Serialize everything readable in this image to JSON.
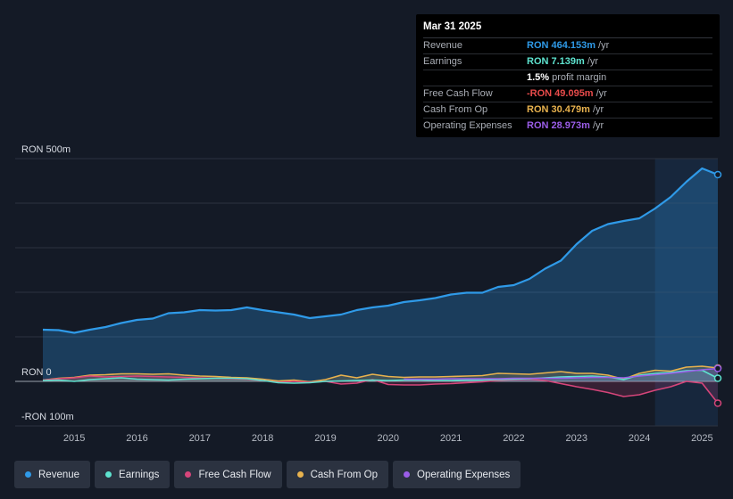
{
  "tooltip": {
    "date": "Mar 31 2025",
    "rows": [
      {
        "label": "Revenue",
        "value": "RON 464.153m",
        "unit": "/yr",
        "color": "#2f9ae8"
      },
      {
        "label": "Earnings",
        "value": "RON 7.139m",
        "unit": "/yr",
        "color": "#5ee3cf"
      },
      {
        "label": "",
        "value": "1.5%",
        "unit": "profit margin",
        "color": "#ffffff"
      },
      {
        "label": "Free Cash Flow",
        "value": "-RON 49.095m",
        "unit": "/yr",
        "color": "#e84b4b"
      },
      {
        "label": "Cash From Op",
        "value": "RON 30.479m",
        "unit": "/yr",
        "color": "#e8b24e"
      },
      {
        "label": "Operating Expenses",
        "value": "RON 28.973m",
        "unit": "/yr",
        "color": "#9b5de8"
      }
    ]
  },
  "legend": [
    {
      "key": "revenue",
      "label": "Revenue",
      "color": "#2f9ae8"
    },
    {
      "key": "earnings",
      "label": "Earnings",
      "color": "#5ee3cf"
    },
    {
      "key": "fcf",
      "label": "Free Cash Flow",
      "color": "#d6457a"
    },
    {
      "key": "cfo",
      "label": "Cash From Op",
      "color": "#e8b24e"
    },
    {
      "key": "opex",
      "label": "Operating Expenses",
      "color": "#9b5de8"
    }
  ],
  "chart_data": {
    "type": "area",
    "title": "",
    "xlabel": "",
    "ylabel": "",
    "y_tick_labels": [
      {
        "value": 500,
        "label": "RON 500m"
      },
      {
        "value": 0,
        "label": "RON 0"
      },
      {
        "value": -100,
        "label": "-RON 100m"
      }
    ],
    "ylim": [
      -100,
      500
    ],
    "xlim": [
      2014.5,
      2025.25
    ],
    "x_ticks": [
      2015,
      2016,
      2017,
      2018,
      2019,
      2020,
      2021,
      2022,
      2023,
      2024,
      2025
    ],
    "x_tick_labels": [
      "2015",
      "2016",
      "2017",
      "2018",
      "2019",
      "2020",
      "2021",
      "2022",
      "2023",
      "2024",
      "2025"
    ],
    "highlight_from": 2024.25,
    "series": [
      {
        "name": "Revenue",
        "color": "#2f9ae8",
        "x": [
          2014.5,
          2014.75,
          2015.0,
          2015.25,
          2015.5,
          2015.75,
          2016.0,
          2016.25,
          2016.5,
          2016.75,
          2017.0,
          2017.25,
          2017.5,
          2017.75,
          2018.0,
          2018.25,
          2018.5,
          2018.75,
          2019.0,
          2019.25,
          2019.5,
          2019.75,
          2020.0,
          2020.25,
          2020.5,
          2020.75,
          2021.0,
          2021.25,
          2021.5,
          2021.75,
          2022.0,
          2022.25,
          2022.5,
          2022.75,
          2023.0,
          2023.25,
          2023.5,
          2023.75,
          2024.0,
          2024.25,
          2024.5,
          2024.75,
          2025.0,
          2025.25
        ],
        "y": [
          116,
          115,
          109,
          116,
          122,
          131,
          138,
          141,
          153,
          155,
          160,
          159,
          160,
          166,
          160,
          155,
          150,
          142,
          146,
          150,
          160,
          166,
          170,
          178,
          182,
          187,
          195,
          199,
          199,
          212,
          216,
          230,
          253,
          271,
          308,
          338,
          353,
          360,
          366,
          388,
          414,
          448,
          478,
          464
        ]
      },
      {
        "name": "Earnings",
        "color": "#5ee3cf",
        "x": [
          2014.5,
          2014.75,
          2015.0,
          2015.25,
          2015.5,
          2015.75,
          2016.0,
          2016.25,
          2016.5,
          2016.75,
          2017.0,
          2017.25,
          2017.5,
          2017.75,
          2018.0,
          2018.25,
          2018.5,
          2018.75,
          2019.0,
          2019.25,
          2019.5,
          2019.75,
          2020.0,
          2020.25,
          2020.5,
          2020.75,
          2021.0,
          2021.25,
          2021.5,
          2021.75,
          2022.0,
          2022.25,
          2022.5,
          2022.75,
          2023.0,
          2023.25,
          2023.5,
          2023.75,
          2024.0,
          2024.25,
          2024.5,
          2024.75,
          2025.0,
          2025.25
        ],
        "y": [
          2,
          3,
          0,
          4,
          6,
          8,
          5,
          4,
          3,
          5,
          6,
          7,
          7,
          6,
          2,
          -3,
          -4,
          -3,
          0,
          1,
          2,
          3,
          2,
          3,
          3,
          2,
          2,
          3,
          3,
          4,
          5,
          6,
          8,
          10,
          11,
          12,
          10,
          4,
          14,
          18,
          20,
          24,
          25,
          7
        ]
      },
      {
        "name": "Free Cash Flow",
        "color": "#d6457a",
        "x": [
          2014.5,
          2014.75,
          2015.0,
          2015.25,
          2015.5,
          2015.75,
          2016.0,
          2016.25,
          2016.5,
          2016.75,
          2017.0,
          2017.25,
          2017.5,
          2017.75,
          2018.0,
          2018.25,
          2018.5,
          2018.75,
          2019.0,
          2019.25,
          2019.5,
          2019.75,
          2020.0,
          2020.25,
          2020.5,
          2020.75,
          2021.0,
          2021.25,
          2021.5,
          2021.75,
          2022.0,
          2022.25,
          2022.5,
          2022.75,
          2023.0,
          2023.25,
          2023.5,
          2023.75,
          2024.0,
          2024.25,
          2024.5,
          2024.75,
          2025.0,
          2025.25
        ],
        "y": [
          3,
          6,
          8,
          12,
          10,
          11,
          12,
          11,
          10,
          9,
          8,
          7,
          6,
          5,
          2,
          -2,
          0,
          -2,
          0,
          -6,
          -4,
          4,
          -7,
          -8,
          -8,
          -6,
          -5,
          -3,
          -1,
          2,
          4,
          5,
          2,
          -5,
          -12,
          -18,
          -25,
          -34,
          -30,
          -20,
          -12,
          0,
          -4,
          -49
        ]
      },
      {
        "name": "Cash From Op",
        "color": "#e8b24e",
        "x": [
          2014.5,
          2014.75,
          2015.0,
          2015.25,
          2015.5,
          2015.75,
          2016.0,
          2016.25,
          2016.5,
          2016.75,
          2017.0,
          2017.25,
          2017.5,
          2017.75,
          2018.0,
          2018.25,
          2018.5,
          2018.75,
          2019.0,
          2019.25,
          2019.5,
          2019.75,
          2020.0,
          2020.25,
          2020.5,
          2020.75,
          2021.0,
          2021.25,
          2021.5,
          2021.75,
          2022.0,
          2022.25,
          2022.5,
          2022.75,
          2023.0,
          2023.25,
          2023.5,
          2023.75,
          2024.0,
          2024.25,
          2024.5,
          2024.75,
          2025.0,
          2025.25
        ],
        "y": [
          3,
          7,
          9,
          14,
          15,
          17,
          17,
          16,
          17,
          14,
          12,
          11,
          9,
          8,
          5,
          1,
          3,
          -1,
          4,
          14,
          8,
          16,
          11,
          9,
          10,
          10,
          11,
          12,
          13,
          18,
          17,
          16,
          19,
          22,
          18,
          18,
          14,
          5,
          18,
          25,
          23,
          32,
          34,
          30
        ]
      },
      {
        "name": "Operating Expenses",
        "color": "#9b5de8",
        "x": [
          2020.25,
          2020.5,
          2020.75,
          2021.0,
          2021.25,
          2021.5,
          2021.75,
          2022.0,
          2022.25,
          2022.5,
          2022.75,
          2023.0,
          2023.25,
          2023.5,
          2023.75,
          2024.0,
          2024.25,
          2024.5,
          2024.75,
          2025.0,
          2025.25
        ],
        "y": [
          5,
          5,
          5,
          6,
          6,
          6,
          6,
          7,
          7,
          7,
          7,
          8,
          9,
          9,
          8,
          12,
          15,
          18,
          22,
          26,
          29
        ]
      }
    ]
  }
}
